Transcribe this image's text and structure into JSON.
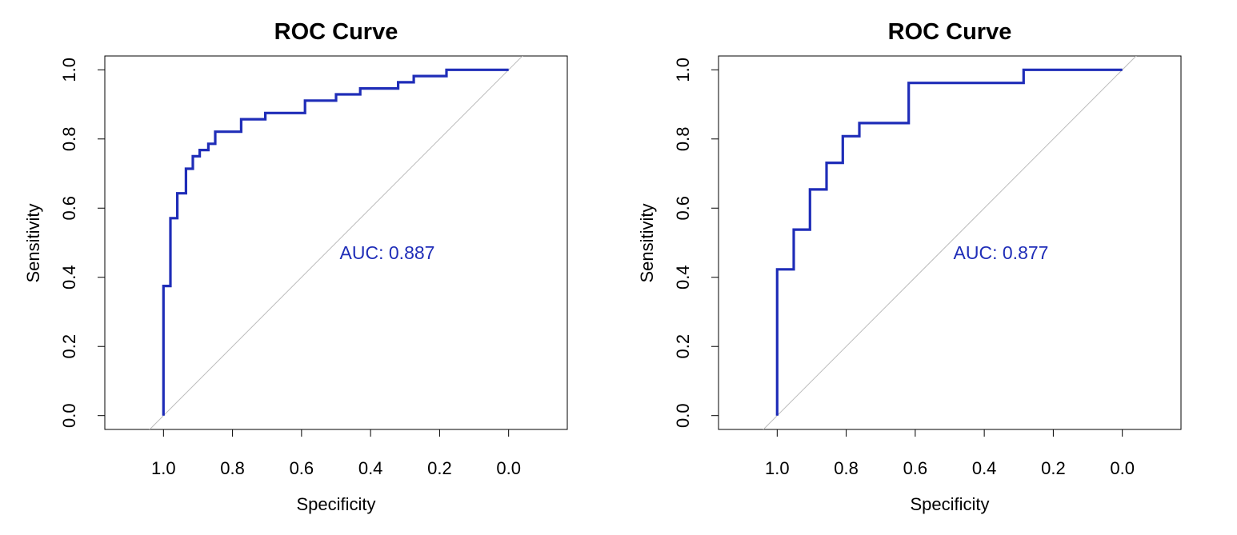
{
  "chart_data": [
    {
      "type": "line",
      "title": "ROC Curve",
      "xlabel": "Specificity",
      "ylabel": "Sensitivity",
      "xlim": [
        1.17,
        -0.17
      ],
      "ylim": [
        -0.04,
        1.04
      ],
      "x_reversed": true,
      "xticks": [
        "1.0",
        "0.8",
        "0.6",
        "0.4",
        "0.2",
        "0.0"
      ],
      "yticks": [
        "0.0",
        "0.2",
        "0.4",
        "0.6",
        "0.8",
        "1.0"
      ],
      "grid": false,
      "curve_color": "#1f2db8",
      "diagonal_color": "#bbbbbb",
      "annotation": "AUC: 0.887",
      "annotation_at": [
        0.5,
        0.475
      ],
      "series": [
        {
          "specificity": [
            1.0,
            1.0,
            0.98,
            0.98,
            0.96,
            0.96,
            0.935,
            0.935,
            0.915,
            0.915,
            0.895,
            0.895,
            0.87,
            0.87,
            0.85,
            0.85,
            0.825,
            0.825,
            0.775,
            0.775,
            0.705,
            0.705,
            0.59,
            0.59,
            0.5,
            0.5,
            0.43,
            0.43,
            0.32,
            0.32,
            0.275,
            0.275,
            0.18,
            0.18,
            0.0
          ],
          "sensitivity": [
            0.0,
            0.375,
            0.375,
            0.571,
            0.571,
            0.643,
            0.643,
            0.714,
            0.714,
            0.75,
            0.75,
            0.768,
            0.768,
            0.786,
            0.786,
            0.821,
            0.821,
            0.821,
            0.821,
            0.857,
            0.857,
            0.875,
            0.875,
            0.911,
            0.911,
            0.929,
            0.929,
            0.946,
            0.946,
            0.964,
            0.964,
            0.982,
            0.982,
            1.0,
            1.0
          ]
        }
      ]
    },
    {
      "type": "line",
      "title": "ROC Curve",
      "xlabel": "Specificity",
      "ylabel": "Sensitivity",
      "xlim": [
        1.17,
        -0.17
      ],
      "ylim": [
        -0.04,
        1.04
      ],
      "x_reversed": true,
      "xticks": [
        "1.0",
        "0.8",
        "0.6",
        "0.4",
        "0.2",
        "0.0"
      ],
      "yticks": [
        "0.0",
        "0.2",
        "0.4",
        "0.6",
        "0.8",
        "1.0"
      ],
      "grid": false,
      "curve_color": "#1f2db8",
      "diagonal_color": "#bbbbbb",
      "annotation": "AUC: 0.877",
      "annotation_at": [
        0.5,
        0.475
      ],
      "series": [
        {
          "specificity": [
            1.0,
            1.0,
            0.952,
            0.952,
            0.905,
            0.905,
            0.857,
            0.857,
            0.81,
            0.81,
            0.762,
            0.762,
            0.619,
            0.619,
            0.286,
            0.286,
            0.0
          ],
          "sensitivity": [
            0.0,
            0.423,
            0.423,
            0.538,
            0.538,
            0.654,
            0.654,
            0.731,
            0.731,
            0.808,
            0.808,
            0.846,
            0.846,
            0.962,
            0.962,
            1.0,
            1.0
          ]
        }
      ]
    }
  ]
}
